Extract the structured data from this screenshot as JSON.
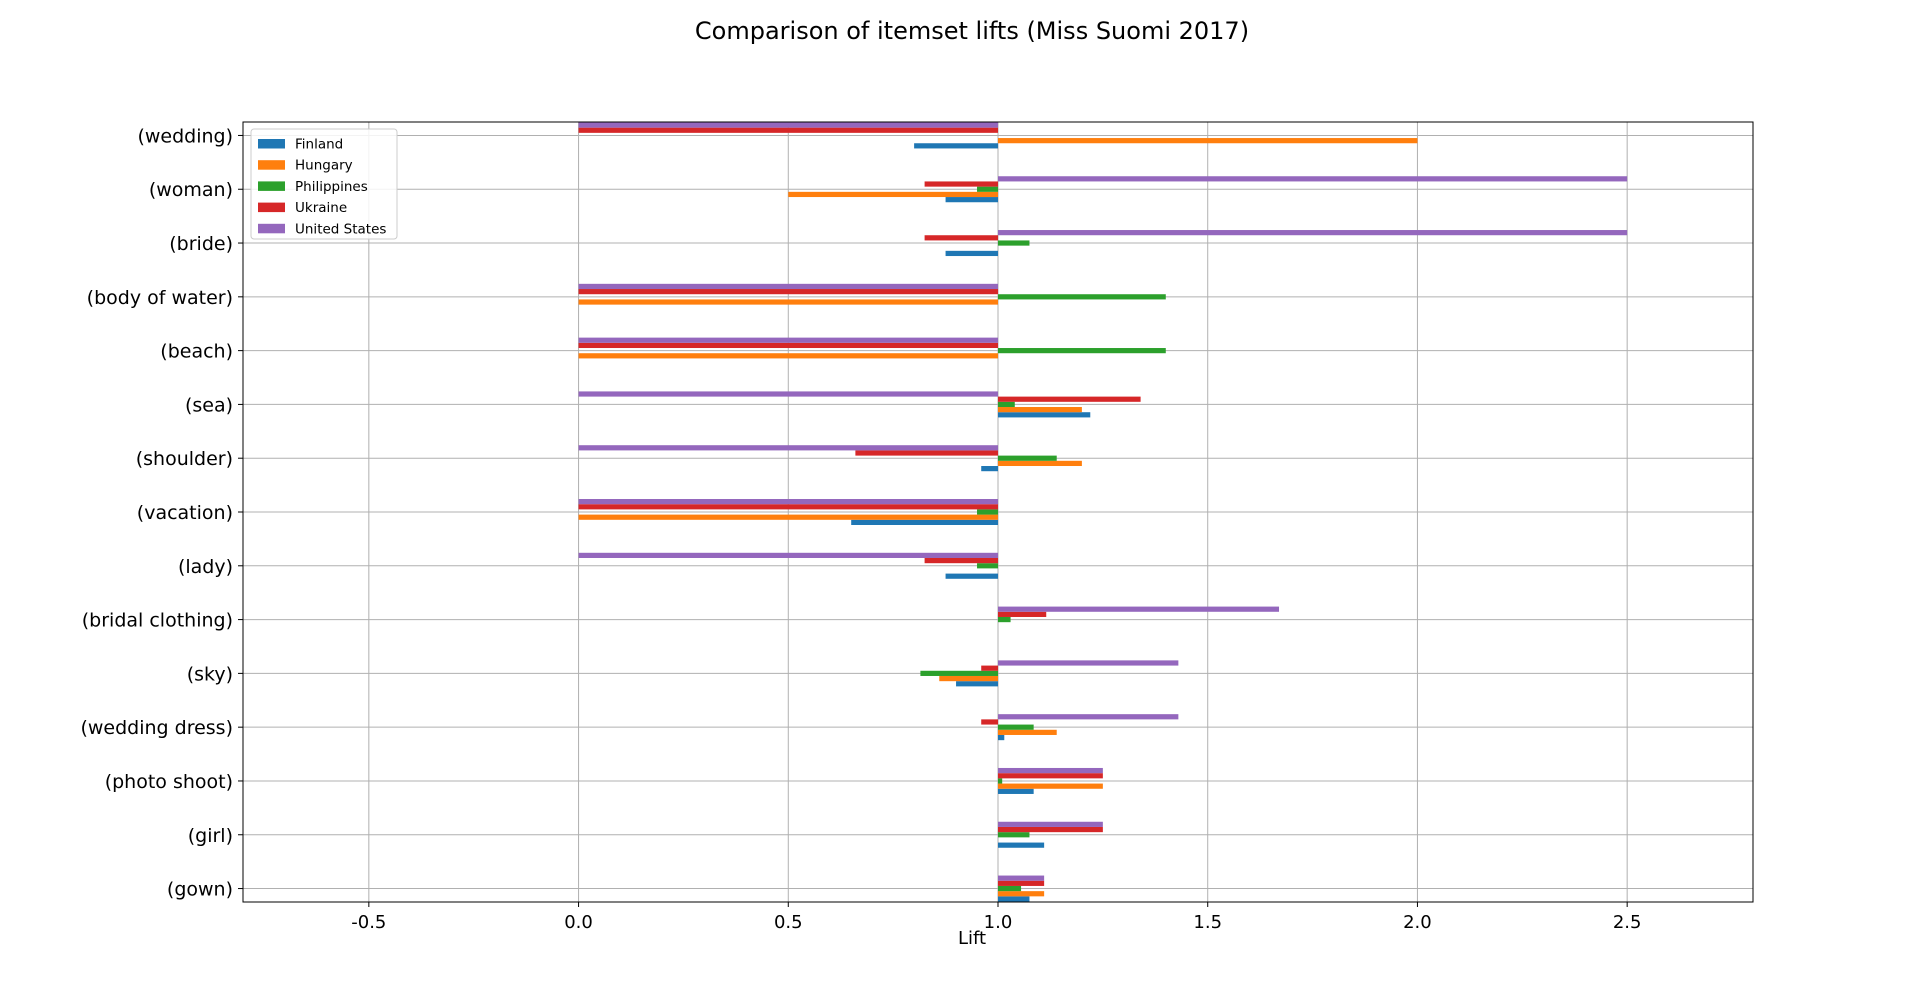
{
  "chart_data": {
    "type": "bar",
    "orientation": "horizontal",
    "title": "Comparison of itemset lifts (Miss Suomi 2017)",
    "xlabel": "Lift",
    "ylabel": "",
    "xlim": [
      -0.8,
      2.8
    ],
    "xticks": [
      -0.5,
      0.0,
      0.5,
      1.0,
      1.5,
      2.0,
      2.5
    ],
    "xtick_labels": [
      "-0.5",
      "0.0",
      "0.5",
      "1.0",
      "1.5",
      "2.0",
      "2.5"
    ],
    "baseline": 1.0,
    "grid": true,
    "legend_position": "top-left",
    "categories": [
      "(wedding)",
      "(woman)",
      "(bride)",
      "(body of water)",
      "(beach)",
      "(sea)",
      "(shoulder)",
      "(vacation)",
      "(lady)",
      "(bridal clothing)",
      "(sky)",
      "(wedding dress)",
      "(photo shoot)",
      "(girl)",
      "(gown)"
    ],
    "series": [
      {
        "name": "Finland",
        "color": "#1f77b4",
        "values": [
          0.8,
          0.875,
          0.875,
          null,
          null,
          1.22,
          0.96,
          0.65,
          0.875,
          null,
          0.9,
          1.015,
          1.085,
          1.11,
          1.075
        ]
      },
      {
        "name": "Hungary",
        "color": "#ff7f0e",
        "values": [
          2.0,
          0.5,
          null,
          0.0,
          0.0,
          1.2,
          1.2,
          0.0,
          null,
          null,
          0.86,
          1.14,
          1.25,
          null,
          1.11
        ]
      },
      {
        "name": "Philippines",
        "color": "#2ca02c",
        "values": [
          null,
          0.95,
          1.075,
          1.4,
          1.4,
          1.04,
          1.14,
          0.95,
          0.95,
          1.03,
          0.815,
          1.085,
          1.01,
          1.075,
          1.055
        ]
      },
      {
        "name": "Ukraine",
        "color": "#d62728",
        "values": [
          0.0,
          0.825,
          0.825,
          0.0,
          0.0,
          1.34,
          0.66,
          0.0,
          0.825,
          1.115,
          0.96,
          0.96,
          1.25,
          1.25,
          1.11
        ]
      },
      {
        "name": "United States",
        "color": "#9467bd",
        "values": [
          0.0,
          2.5,
          2.5,
          0.0,
          0.0,
          0.0,
          0.0,
          0.0,
          0.0,
          1.67,
          1.43,
          1.43,
          1.25,
          1.25,
          1.11
        ]
      }
    ]
  }
}
